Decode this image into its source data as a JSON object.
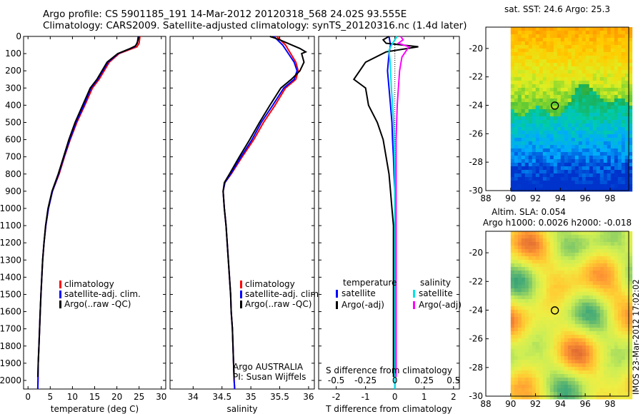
{
  "header": {
    "line1": "Argo profile: CS 5901185_191 14-Mar-2012 20120318_568 24.02S 93.555E",
    "line2": "Climatology: CARS2009. Satellite-adjusted climatology: synTS_20120316.nc (1.4d later)"
  },
  "stamp": "IMOS 23-Mar-2012 17:02:02",
  "chart_data": [
    {
      "type": "line",
      "id": "temperature",
      "xlabel": "temperature (deg C)",
      "ylabel": "",
      "xlim": [
        -1,
        31
      ],
      "ylim": [
        2050,
        0
      ],
      "xticks": [
        0,
        5,
        10,
        15,
        20,
        25,
        30
      ],
      "yticks": [
        0,
        100,
        200,
        300,
        400,
        500,
        600,
        700,
        800,
        900,
        1000,
        1100,
        1200,
        1300,
        1400,
        1500,
        1600,
        1700,
        1800,
        1900,
        2000
      ],
      "legend": [
        "climatology",
        "satellite-adj. clim.",
        "Argo(..raw -QC)"
      ],
      "legend_position": "bottom-center",
      "colors": {
        "climatology": "#ff0000",
        "satellite": "#0000ff",
        "argo": "#000000"
      },
      "series": [
        {
          "name": "climatology",
          "values": [
            [
              25.2,
              0
            ],
            [
              25.0,
              40
            ],
            [
              24.5,
              60
            ],
            [
              20.5,
              100
            ],
            [
              18.3,
              150
            ],
            [
              16.0,
              250
            ],
            [
              14.5,
              300
            ],
            [
              12.8,
              400
            ],
            [
              11.0,
              500
            ],
            [
              9.5,
              600
            ],
            [
              8.2,
              700
            ],
            [
              7.0,
              800
            ],
            [
              5.5,
              900
            ],
            [
              4.6,
              1000
            ],
            [
              4.0,
              1100
            ],
            [
              3.6,
              1200
            ],
            [
              3.3,
              1300
            ],
            [
              3.1,
              1400
            ],
            [
              2.9,
              1500
            ],
            [
              2.75,
              1600
            ],
            [
              2.6,
              1700
            ],
            [
              2.45,
              1800
            ],
            [
              2.3,
              1900
            ],
            [
              2.25,
              2000
            ],
            [
              2.2,
              2050
            ]
          ]
        },
        {
          "name": "satellite",
          "values": [
            [
              24.8,
              0
            ],
            [
              24.6,
              40
            ],
            [
              24.0,
              60
            ],
            [
              20.3,
              100
            ],
            [
              18.0,
              150
            ],
            [
              15.7,
              250
            ],
            [
              14.2,
              300
            ],
            [
              12.6,
              400
            ],
            [
              10.8,
              500
            ],
            [
              9.4,
              600
            ],
            [
              8.1,
              700
            ],
            [
              6.9,
              800
            ],
            [
              5.5,
              900
            ],
            [
              4.6,
              1000
            ],
            [
              4.0,
              1100
            ],
            [
              3.6,
              1200
            ],
            [
              3.3,
              1300
            ],
            [
              3.1,
              1400
            ],
            [
              2.9,
              1500
            ],
            [
              2.75,
              1600
            ],
            [
              2.6,
              1700
            ],
            [
              2.45,
              1800
            ],
            [
              2.3,
              1900
            ],
            [
              2.25,
              2000
            ],
            [
              2.2,
              2050
            ]
          ]
        },
        {
          "name": "argo",
          "values": [
            [
              25.0,
              0
            ],
            [
              24.8,
              20
            ],
            [
              24.5,
              40
            ],
            [
              24.2,
              55
            ],
            [
              23.0,
              70
            ],
            [
              20.2,
              100
            ],
            [
              17.8,
              150
            ],
            [
              15.5,
              250
            ],
            [
              14.0,
              300
            ],
            [
              12.3,
              400
            ],
            [
              10.6,
              500
            ],
            [
              9.2,
              600
            ],
            [
              8.0,
              700
            ],
            [
              6.8,
              800
            ],
            [
              5.4,
              900
            ],
            [
              4.5,
              1000
            ],
            [
              3.95,
              1100
            ],
            [
              3.6,
              1200
            ],
            [
              3.3,
              1300
            ],
            [
              3.1,
              1400
            ],
            [
              2.9,
              1500
            ],
            [
              2.75,
              1600
            ],
            [
              2.6,
              1700
            ],
            [
              2.45,
              1800
            ],
            [
              2.3,
              1900
            ],
            [
              2.2,
              1980
            ]
          ]
        }
      ]
    },
    {
      "type": "line",
      "id": "salinity",
      "xlabel": "salinity",
      "ylabel": "",
      "xlim": [
        33.6,
        36.1
      ],
      "ylim": [
        2050,
        0
      ],
      "xticks": [
        34,
        34.5,
        35,
        35.5,
        36
      ],
      "legend": [
        "climatology",
        "satellite-adj. clim.",
        "Argo(..raw -QC)"
      ],
      "legend_position": "bottom-center",
      "annotation": [
        "Argo AUSTRALIA",
        "PI: Susan Wijffels"
      ],
      "series": [
        {
          "name": "climatology",
          "values": [
            [
              35.45,
              0
            ],
            [
              35.6,
              50
            ],
            [
              35.78,
              150
            ],
            [
              35.82,
              200
            ],
            [
              35.78,
              250
            ],
            [
              35.6,
              300
            ],
            [
              35.42,
              400
            ],
            [
              35.22,
              500
            ],
            [
              35.05,
              600
            ],
            [
              34.85,
              700
            ],
            [
              34.66,
              800
            ],
            [
              34.55,
              850
            ],
            [
              34.52,
              900
            ],
            [
              34.54,
              1000
            ],
            [
              34.57,
              1100
            ],
            [
              34.59,
              1200
            ],
            [
              34.61,
              1300
            ],
            [
              34.63,
              1400
            ],
            [
              34.65,
              1500
            ],
            [
              34.66,
              1600
            ],
            [
              34.68,
              1700
            ],
            [
              34.69,
              1800
            ],
            [
              34.7,
              1900
            ],
            [
              34.71,
              2000
            ],
            [
              34.72,
              2050
            ]
          ]
        },
        {
          "name": "satellite",
          "values": [
            [
              35.4,
              0
            ],
            [
              35.55,
              50
            ],
            [
              35.75,
              150
            ],
            [
              35.8,
              200
            ],
            [
              35.75,
              250
            ],
            [
              35.57,
              300
            ],
            [
              35.38,
              400
            ],
            [
              35.18,
              500
            ],
            [
              35.02,
              600
            ],
            [
              34.83,
              700
            ],
            [
              34.65,
              800
            ],
            [
              34.55,
              850
            ],
            [
              34.52,
              900
            ],
            [
              34.54,
              1000
            ],
            [
              34.57,
              1100
            ],
            [
              34.59,
              1200
            ],
            [
              34.61,
              1300
            ],
            [
              34.63,
              1400
            ],
            [
              34.65,
              1500
            ],
            [
              34.66,
              1600
            ],
            [
              34.68,
              1700
            ],
            [
              34.69,
              1800
            ],
            [
              34.7,
              1900
            ],
            [
              34.71,
              2000
            ],
            [
              34.72,
              2050
            ]
          ]
        },
        {
          "name": "argo",
          "values": [
            [
              35.33,
              0
            ],
            [
              35.5,
              20
            ],
            [
              35.85,
              70
            ],
            [
              35.95,
              90
            ],
            [
              35.88,
              100
            ],
            [
              35.92,
              150
            ],
            [
              35.85,
              200
            ],
            [
              35.7,
              250
            ],
            [
              35.52,
              300
            ],
            [
              35.33,
              400
            ],
            [
              35.15,
              500
            ],
            [
              34.98,
              600
            ],
            [
              34.8,
              700
            ],
            [
              34.63,
              800
            ],
            [
              34.54,
              850
            ],
            [
              34.52,
              900
            ],
            [
              34.54,
              1000
            ],
            [
              34.57,
              1100
            ],
            [
              34.59,
              1200
            ],
            [
              34.61,
              1300
            ],
            [
              34.63,
              1400
            ],
            [
              34.65,
              1500
            ],
            [
              34.66,
              1600
            ],
            [
              34.68,
              1700
            ],
            [
              34.69,
              1800
            ],
            [
              34.7,
              1900
            ],
            [
              34.71,
              1980
            ]
          ]
        }
      ]
    },
    {
      "type": "line",
      "id": "difference",
      "xlabel": "T difference from climatology",
      "xlabel2": "S difference from climatology",
      "ylabel": "",
      "xlim": [
        -2.6,
        2.2
      ],
      "ylim": [
        2050,
        0
      ],
      "xticks": [
        -2,
        -1,
        0,
        1,
        2
      ],
      "xticks_top": [
        -0.5,
        -0.25,
        0,
        0.25,
        0.5
      ],
      "xlim_top": [
        -0.65,
        0.55
      ],
      "legend_groups": [
        "temperature",
        "salinity"
      ],
      "legend": [
        "satellite",
        "Argo(-adj)",
        "satellite",
        "Argo(-adj)"
      ],
      "colors": {
        "t_satellite": "#0000ff",
        "t_argo": "#000000",
        "s_satellite": "#00e5e5",
        "s_argo": "#ff00ff"
      },
      "series": [
        {
          "name": "temperature satellite",
          "axis": "T",
          "values": [
            [
              -0.2,
              0
            ],
            [
              -0.15,
              50
            ],
            [
              -0.2,
              100
            ],
            [
              -0.25,
              200
            ],
            [
              -0.2,
              300
            ],
            [
              -0.15,
              400
            ],
            [
              -0.1,
              500
            ],
            [
              -0.08,
              600
            ],
            [
              -0.05,
              700
            ],
            [
              -0.03,
              800
            ],
            [
              0,
              900
            ],
            [
              0,
              1000
            ],
            [
              0,
              1100
            ],
            [
              0,
              1200
            ],
            [
              0,
              1400
            ],
            [
              0,
              1600
            ],
            [
              0,
              1800
            ],
            [
              0,
              2050
            ]
          ]
        },
        {
          "name": "temperature argo",
          "axis": "T",
          "values": [
            [
              -0.2,
              0
            ],
            [
              -0.4,
              20
            ],
            [
              -0.3,
              40
            ],
            [
              0.8,
              60
            ],
            [
              -0.3,
              90
            ],
            [
              -1.0,
              150
            ],
            [
              -1.2,
              200
            ],
            [
              -1.4,
              250
            ],
            [
              -1.0,
              300
            ],
            [
              -0.9,
              400
            ],
            [
              -0.6,
              500
            ],
            [
              -0.4,
              600
            ],
            [
              -0.3,
              700
            ],
            [
              -0.2,
              800
            ],
            [
              -0.15,
              900
            ],
            [
              -0.1,
              1000
            ],
            [
              -0.05,
              1100
            ],
            [
              -0.05,
              1200
            ],
            [
              -0.05,
              1400
            ],
            [
              -0.05,
              1600
            ],
            [
              -0.05,
              1800
            ],
            [
              -0.05,
              1980
            ]
          ]
        },
        {
          "name": "salinity satellite",
          "axis": "S",
          "values": [
            [
              0.02,
              0
            ],
            [
              -0.02,
              40
            ],
            [
              -0.05,
              80
            ],
            [
              -0.04,
              150
            ],
            [
              -0.03,
              300
            ],
            [
              -0.01,
              500
            ],
            [
              0.0,
              800
            ],
            [
              0.0,
              1200
            ],
            [
              0.0,
              2050
            ]
          ]
        },
        {
          "name": "salinity argo",
          "axis": "S",
          "values": [
            [
              0.05,
              0
            ],
            [
              0.07,
              20
            ],
            [
              0.03,
              40
            ],
            [
              0.12,
              60
            ],
            [
              0.1,
              80
            ],
            [
              0.06,
              120
            ],
            [
              0.04,
              200
            ],
            [
              0.03,
              300
            ],
            [
              0.02,
              400
            ],
            [
              0.01,
              600
            ],
            [
              0.01,
              1000
            ],
            [
              0.01,
              1400
            ],
            [
              0.01,
              1800
            ],
            [
              0.01,
              1980
            ]
          ]
        }
      ]
    },
    {
      "type": "heatmap",
      "id": "sst-map",
      "title": "sat. SST: 24.6 Argo: 25.3",
      "xlim": [
        88,
        99.5
      ],
      "ylim": [
        -30,
        -18.5
      ],
      "xticks": [
        88,
        90,
        92,
        94,
        96,
        98
      ],
      "yticks": [
        -30,
        -28,
        -26,
        -24,
        -22,
        -20
      ],
      "marker": {
        "lon": 93.555,
        "lat": -24.02
      },
      "colormap": [
        "#0033cc",
        "#00aaff",
        "#00ccaa",
        "#22aa44",
        "#66cc33",
        "#ddee22",
        "#ffcc00",
        "#ff9900"
      ]
    },
    {
      "type": "heatmap",
      "id": "sla-map",
      "title": "Altim. SLA: 0.054",
      "subtitle": "Argo h1000: 0.0026 h2000: -0.018",
      "xlim": [
        88,
        99.5
      ],
      "ylim": [
        -30,
        -18.5
      ],
      "xticks": [
        88,
        90,
        92,
        94,
        96,
        98
      ],
      "yticks": [
        -30,
        -28,
        -26,
        -24,
        -22,
        -20
      ],
      "marker": {
        "lon": 93.555,
        "lat": -24.02
      },
      "colormap": [
        "#228866",
        "#44aa77",
        "#88cc66",
        "#ccee55",
        "#eeee44",
        "#ffcc33",
        "#ff9933",
        "#dd6633"
      ]
    }
  ]
}
